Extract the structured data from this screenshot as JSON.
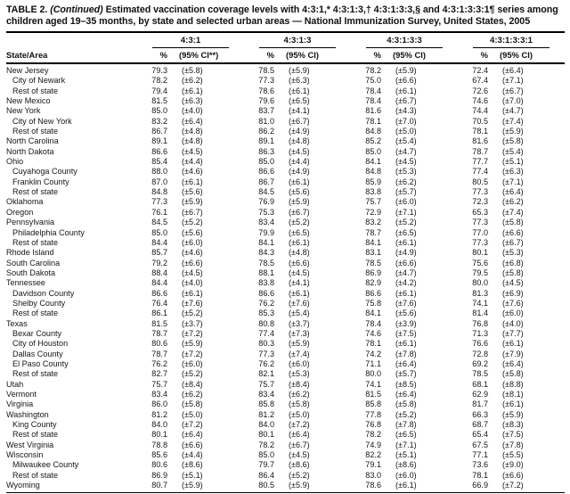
{
  "title": {
    "prefix": "TABLE 2.",
    "continued": "(Continued)",
    "rest": "Estimated vaccination coverage levels with 4:3:1,* 4:3:1:3,† 4:3:1:3:3,§ and 4:3:1:3:3:1¶ series among children aged 19–35 months, by state and selected urban areas — National Immunization Survey, United States, 2005"
  },
  "header": {
    "state_col": "State/Area",
    "groups": [
      {
        "label": "4:3:1",
        "pct": "%",
        "ci": "(95% CI**)"
      },
      {
        "label": "4:3:1:3",
        "pct": "%",
        "ci": "(95% CI)"
      },
      {
        "label": "4:3:1:3:3",
        "pct": "%",
        "ci": "(95% CI)"
      },
      {
        "label": "4:3:1:3:3:1",
        "pct": "%",
        "ci": "(95% CI)"
      }
    ]
  },
  "rows": [
    {
      "area": "New Jersey",
      "indent": false,
      "values": [
        "79.3",
        "(±5.8)",
        "78.5",
        "(±5.9)",
        "78.2",
        "(±5.9)",
        "72.4",
        "(±6.4)"
      ]
    },
    {
      "area": "City of Newark",
      "indent": true,
      "values": [
        "78.2",
        "(±6.2)",
        "77.3",
        "(±6.3)",
        "75.0",
        "(±6.6)",
        "67.4",
        "(±7.1)"
      ]
    },
    {
      "area": "Rest of state",
      "indent": true,
      "values": [
        "79.4",
        "(±6.1)",
        "78.6",
        "(±6.1)",
        "78.4",
        "(±6.1)",
        "72.6",
        "(±6.7)"
      ]
    },
    {
      "area": "New Mexico",
      "indent": false,
      "values": [
        "81.5",
        "(±6.3)",
        "79.6",
        "(±6.5)",
        "78.4",
        "(±6.7)",
        "74.6",
        "(±7.0)"
      ]
    },
    {
      "area": "New York",
      "indent": false,
      "values": [
        "85.0",
        "(±4.0)",
        "83.7",
        "(±4.1)",
        "81.6",
        "(±4.3)",
        "74.4",
        "(±4.7)"
      ]
    },
    {
      "area": "City of New York",
      "indent": true,
      "values": [
        "83.2",
        "(±6.4)",
        "81.0",
        "(±6.7)",
        "78.1",
        "(±7.0)",
        "70.5",
        "(±7.4)"
      ]
    },
    {
      "area": "Rest of state",
      "indent": true,
      "values": [
        "86.7",
        "(±4.8)",
        "86.2",
        "(±4.9)",
        "84.8",
        "(±5.0)",
        "78.1",
        "(±5.9)"
      ]
    },
    {
      "area": "North Carolina",
      "indent": false,
      "values": [
        "89.1",
        "(±4.8)",
        "89.1",
        "(±4.8)",
        "85.2",
        "(±5.4)",
        "81.6",
        "(±5.8)"
      ]
    },
    {
      "area": "North Dakota",
      "indent": false,
      "values": [
        "86.6",
        "(±4.5)",
        "86.3",
        "(±4.5)",
        "85.0",
        "(±4.7)",
        "78.7",
        "(±5.4)"
      ]
    },
    {
      "area": "Ohio",
      "indent": false,
      "values": [
        "85.4",
        "(±4.4)",
        "85.0",
        "(±4.4)",
        "84.1",
        "(±4.5)",
        "77.7",
        "(±5.1)"
      ]
    },
    {
      "area": "Cuyahoga County",
      "indent": true,
      "values": [
        "88.0",
        "(±4.6)",
        "86.6",
        "(±4.9)",
        "84.8",
        "(±5.3)",
        "77.4",
        "(±6.3)"
      ]
    },
    {
      "area": "Franklin County",
      "indent": true,
      "values": [
        "87.0",
        "(±6.1)",
        "86.7",
        "(±6.1)",
        "85.9",
        "(±6.2)",
        "80.5",
        "(±7.1)"
      ]
    },
    {
      "area": "Rest of state",
      "indent": true,
      "values": [
        "84.8",
        "(±5.6)",
        "84.5",
        "(±5.6)",
        "83.8",
        "(±5.7)",
        "77.3",
        "(±6.4)"
      ]
    },
    {
      "area": "Oklahoma",
      "indent": false,
      "values": [
        "77.3",
        "(±5.9)",
        "76.9",
        "(±5.9)",
        "75.7",
        "(±6.0)",
        "72.3",
        "(±6.2)"
      ]
    },
    {
      "area": "Oregon",
      "indent": false,
      "values": [
        "76.1",
        "(±6.7)",
        "75.3",
        "(±6.7)",
        "72.9",
        "(±7.1)",
        "65.3",
        "(±7.4)"
      ]
    },
    {
      "area": "Pennsylvania",
      "indent": false,
      "values": [
        "84.5",
        "(±5.2)",
        "83.4",
        "(±5.2)",
        "83.2",
        "(±5.2)",
        "77.3",
        "(±5.8)"
      ]
    },
    {
      "area": "Philadelphia County",
      "indent": true,
      "values": [
        "85.0",
        "(±5.6)",
        "79.9",
        "(±6.5)",
        "78.7",
        "(±6.5)",
        "77.0",
        "(±6.6)"
      ]
    },
    {
      "area": "Rest of state",
      "indent": true,
      "values": [
        "84.4",
        "(±6.0)",
        "84.1",
        "(±6.1)",
        "84.1",
        "(±6.1)",
        "77.3",
        "(±6.7)"
      ]
    },
    {
      "area": "Rhode Island",
      "indent": false,
      "values": [
        "85.7",
        "(±4.6)",
        "84.3",
        "(±4.8)",
        "83.1",
        "(±4.9)",
        "80.1",
        "(±5.3)"
      ]
    },
    {
      "area": "South Carolina",
      "indent": false,
      "values": [
        "79.2",
        "(±6.6)",
        "78.5",
        "(±6.6)",
        "78.5",
        "(±6.6)",
        "75.6",
        "(±6.8)"
      ]
    },
    {
      "area": "South Dakota",
      "indent": false,
      "values": [
        "88.4",
        "(±4.5)",
        "88.1",
        "(±4.5)",
        "86.9",
        "(±4.7)",
        "79.5",
        "(±5.8)"
      ]
    },
    {
      "area": "Tennessee",
      "indent": false,
      "values": [
        "84.4",
        "(±4.0)",
        "83.8",
        "(±4.1)",
        "82.9",
        "(±4.2)",
        "80.0",
        "(±4.5)"
      ]
    },
    {
      "area": "Davidson County",
      "indent": true,
      "values": [
        "86.6",
        "(±6.1)",
        "86.6",
        "(±6.1)",
        "86.6",
        "(±6.1)",
        "81.3",
        "(±6.9)"
      ]
    },
    {
      "area": "Shelby County",
      "indent": true,
      "values": [
        "76.4",
        "(±7.6)",
        "76.2",
        "(±7.6)",
        "75.8",
        "(±7.6)",
        "74.1",
        "(±7.6)"
      ]
    },
    {
      "area": "Rest of state",
      "indent": true,
      "values": [
        "86.1",
        "(±5.2)",
        "85.3",
        "(±5.4)",
        "84.1",
        "(±5.6)",
        "81.4",
        "(±6.0)"
      ]
    },
    {
      "area": "Texas",
      "indent": false,
      "values": [
        "81.5",
        "(±3.7)",
        "80.8",
        "(±3.7)",
        "78.4",
        "(±3.9)",
        "76.8",
        "(±4.0)"
      ]
    },
    {
      "area": "Bexar County",
      "indent": true,
      "values": [
        "78.7",
        "(±7.2)",
        "77.4",
        "(±7.3)",
        "74.6",
        "(±7.5)",
        "71.3",
        "(±7.7)"
      ]
    },
    {
      "area": "City of Houston",
      "indent": true,
      "values": [
        "80.6",
        "(±5.9)",
        "80.3",
        "(±5.9)",
        "78.1",
        "(±6.1)",
        "76.6",
        "(±6.1)"
      ]
    },
    {
      "area": "Dallas County",
      "indent": true,
      "values": [
        "78.7",
        "(±7.2)",
        "77.3",
        "(±7.4)",
        "74.2",
        "(±7.8)",
        "72.8",
        "(±7.9)"
      ]
    },
    {
      "area": "El Paso County",
      "indent": true,
      "values": [
        "76.2",
        "(±6.0)",
        "76.2",
        "(±6.0)",
        "71.1",
        "(±6.4)",
        "69.2",
        "(±6.4)"
      ]
    },
    {
      "area": "Rest of state",
      "indent": true,
      "values": [
        "82.7",
        "(±5.2)",
        "82.1",
        "(±5.3)",
        "80.0",
        "(±5.7)",
        "78.5",
        "(±5.8)"
      ]
    },
    {
      "area": "Utah",
      "indent": false,
      "values": [
        "75.7",
        "(±8.4)",
        "75.7",
        "(±8.4)",
        "74.1",
        "(±8.5)",
        "68.1",
        "(±8.8)"
      ]
    },
    {
      "area": "Vermont",
      "indent": false,
      "values": [
        "83.4",
        "(±6.2)",
        "83.4",
        "(±6.2)",
        "81.5",
        "(±6.4)",
        "62.9",
        "(±8.1)"
      ]
    },
    {
      "area": "Virginia",
      "indent": false,
      "values": [
        "86.0",
        "(±5.8)",
        "85.8",
        "(±5.8)",
        "85.8",
        "(±5.8)",
        "81.7",
        "(±6.1)"
      ]
    },
    {
      "area": "Washington",
      "indent": false,
      "values": [
        "81.2",
        "(±5.0)",
        "81.2",
        "(±5.0)",
        "77.8",
        "(±5.2)",
        "66.3",
        "(±5.9)"
      ]
    },
    {
      "area": "King County",
      "indent": true,
      "values": [
        "84.0",
        "(±7.2)",
        "84.0",
        "(±7.2)",
        "76.8",
        "(±7.8)",
        "68.7",
        "(±8.3)"
      ]
    },
    {
      "area": "Rest of state",
      "indent": true,
      "values": [
        "80.1",
        "(±6.4)",
        "80.1",
        "(±6.4)",
        "78.2",
        "(±6.5)",
        "65.4",
        "(±7.5)"
      ]
    },
    {
      "area": "West Virginia",
      "indent": false,
      "values": [
        "78.8",
        "(±6.6)",
        "78.2",
        "(±6.7)",
        "74.9",
        "(±7.1)",
        "67.5",
        "(±7.8)"
      ]
    },
    {
      "area": "Wisconsin",
      "indent": false,
      "values": [
        "85.6",
        "(±4.4)",
        "85.0",
        "(±4.5)",
        "82.2",
        "(±5.1)",
        "77.1",
        "(±5.5)"
      ]
    },
    {
      "area": "Milwaukee County",
      "indent": true,
      "values": [
        "80.6",
        "(±8.6)",
        "79.7",
        "(±8.6)",
        "79.1",
        "(±8.6)",
        "73.6",
        "(±9.0)"
      ]
    },
    {
      "area": "Rest of state",
      "indent": true,
      "values": [
        "86.9",
        "(±5.1)",
        "86.4",
        "(±5.2)",
        "83.0",
        "(±6.0)",
        "78.1",
        "(±6.6)"
      ]
    },
    {
      "area": "Wyoming",
      "indent": false,
      "values": [
        "80.7",
        "(±5.9)",
        "80.5",
        "(±5.9)",
        "78.6",
        "(±6.1)",
        "66.9",
        "(±7.2)"
      ]
    }
  ]
}
